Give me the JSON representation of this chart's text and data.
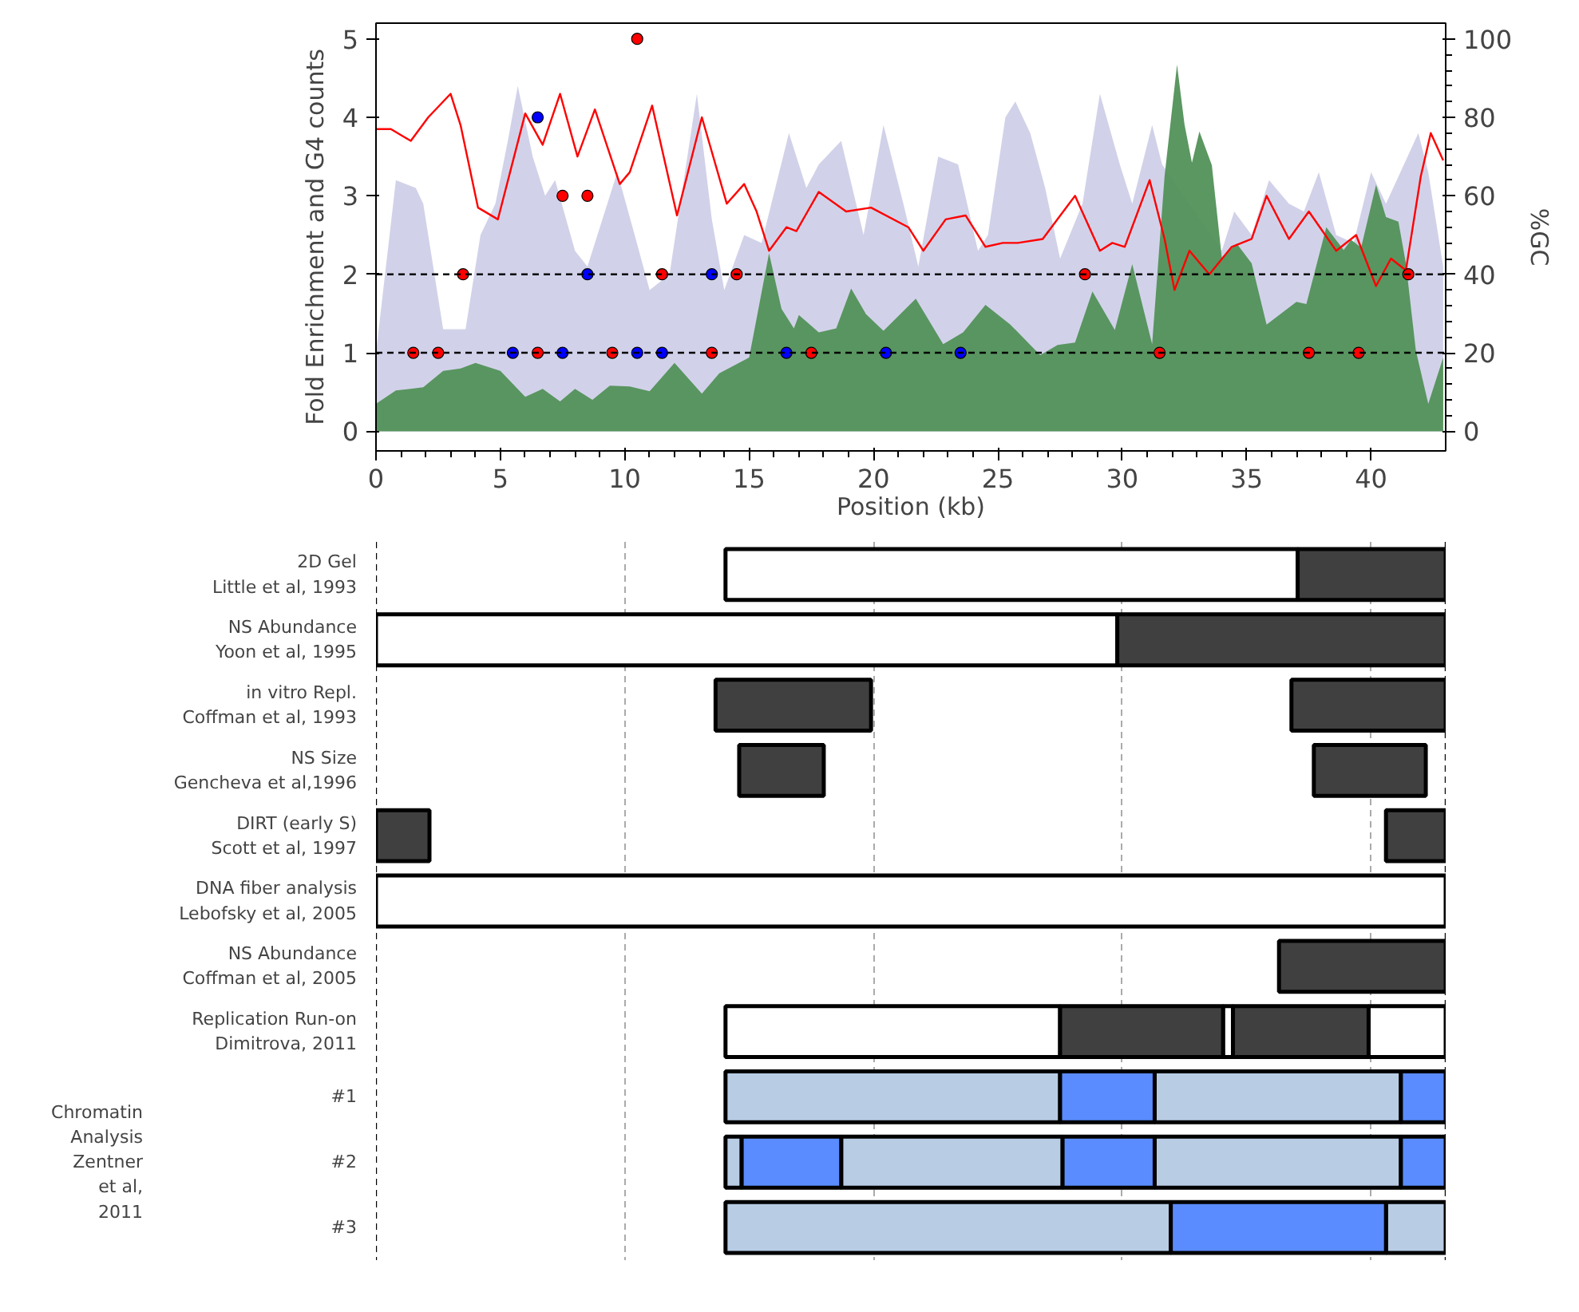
{
  "chart_data": [
    {
      "type": "area",
      "xlabel": "Position (kb)",
      "ylabel": "Fold Enrichment and G4 counts",
      "y2label": "%GC",
      "xlim": [
        0,
        43
      ],
      "xticks": [
        0,
        5,
        10,
        15,
        20,
        25,
        30,
        35,
        40
      ],
      "ylim": [
        -0.25,
        5.2
      ],
      "yticks": [
        0,
        1,
        2,
        3,
        4,
        5
      ],
      "y2lim": [
        -5,
        104
      ],
      "y2ticks": [
        0,
        20,
        40,
        60,
        80,
        100
      ],
      "grid": false,
      "ref_lines": [
        {
          "axis": "y",
          "value": 1,
          "line_style": "dashed",
          "color": "#000000"
        },
        {
          "axis": "y",
          "value": 2,
          "line_style": "dashed",
          "color": "#000000"
        }
      ],
      "series": [
        {
          "type": "area",
          "color": "#cfd0e8",
          "x": [
            0,
            0.8,
            1.6,
            1.9,
            2.7,
            3.6,
            4.2,
            4.8,
            5.3,
            5.7,
            6.3,
            6.8,
            7.2,
            8.0,
            8.5,
            9.7,
            10.4,
            11.0,
            11.8,
            12.9,
            13.5,
            14.0,
            14.8,
            15.5,
            16.6,
            17.3,
            17.8,
            18.7,
            19.6,
            20.4,
            21.2,
            21.8,
            22.6,
            23.4,
            24.2,
            24.6,
            25.3,
            25.7,
            26.3,
            26.9,
            27.5,
            28.4,
            29.1,
            29.9,
            30.4,
            31.2,
            31.6,
            34.0,
            34.5,
            35.2,
            35.9,
            36.7,
            37.3,
            37.9,
            38.6,
            39.3,
            40.0,
            40.6,
            41.9,
            42.3,
            42.9
          ],
          "values": [
            1.0,
            3.2,
            3.1,
            2.9,
            1.3,
            1.3,
            2.5,
            2.9,
            3.7,
            4.4,
            3.5,
            3.0,
            3.2,
            2.3,
            2.1,
            3.3,
            2.5,
            1.8,
            2.0,
            4.3,
            2.7,
            1.8,
            2.5,
            2.4,
            3.8,
            3.1,
            3.4,
            3.7,
            2.5,
            3.9,
            2.9,
            2.1,
            3.5,
            3.4,
            2.3,
            2.5,
            4.0,
            4.2,
            3.8,
            3.1,
            2.2,
            2.9,
            4.3,
            3.4,
            2.9,
            3.9,
            3.4,
            2.3,
            2.8,
            2.5,
            3.2,
            2.9,
            2.8,
            3.3,
            2.5,
            2.4,
            3.3,
            2.9,
            3.8,
            3.3,
            2.1
          ]
        },
        {
          "type": "area",
          "color": "#529159",
          "x": [
            0,
            0.8,
            1.9,
            2.7,
            3.4,
            4.0,
            5.0,
            6.0,
            6.7,
            7.4,
            8.0,
            8.7,
            9.4,
            10.2,
            11.0,
            12.0,
            13.1,
            13.8,
            15.0,
            15.8,
            16.3,
            16.8,
            17.0,
            17.8,
            18.5,
            19.1,
            19.7,
            20.4,
            21.7,
            22.8,
            23.6,
            24.5,
            25.5,
            26.7,
            27.4,
            28.1,
            28.8,
            29.7,
            30.4,
            31.2,
            31.7,
            32.2,
            32.5,
            32.8,
            33.1,
            33.6,
            34.0,
            34.6,
            35.2,
            35.8,
            37.0,
            37.4,
            38.2,
            38.9,
            39.2,
            39.6,
            40.2,
            40.6,
            41.1,
            41.4,
            41.8,
            42.3,
            42.9
          ],
          "values": [
            0.35,
            0.52,
            0.56,
            0.77,
            0.8,
            0.87,
            0.77,
            0.44,
            0.54,
            0.38,
            0.54,
            0.4,
            0.58,
            0.57,
            0.51,
            0.87,
            0.48,
            0.74,
            0.94,
            2.27,
            1.56,
            1.31,
            1.48,
            1.26,
            1.31,
            1.82,
            1.49,
            1.28,
            1.69,
            1.11,
            1.26,
            1.61,
            1.36,
            0.97,
            1.1,
            1.13,
            1.78,
            1.29,
            2.13,
            1.11,
            3.25,
            4.67,
            3.91,
            3.42,
            3.82,
            3.39,
            2.21,
            2.39,
            2.14,
            1.36,
            1.65,
            1.62,
            2.6,
            2.31,
            2.44,
            2.34,
            3.14,
            2.73,
            2.67,
            2.14,
            1.03,
            0.35,
            0.94
          ]
        },
        {
          "type": "line",
          "axis": "y2",
          "color": "#ff0000",
          "x": [
            0,
            0.6,
            1.4,
            2.1,
            3.0,
            3.4,
            4.1,
            4.9,
            6.0,
            6.7,
            7.4,
            8.1,
            8.8,
            9.8,
            10.2,
            11.1,
            12.1,
            13.1,
            14.1,
            14.8,
            15.3,
            15.8,
            16.5,
            16.9,
            17.8,
            18.9,
            19.9,
            21.4,
            22.0,
            22.9,
            23.7,
            24.5,
            25.2,
            25.8,
            26.8,
            28.1,
            29.1,
            29.6,
            30.1,
            31.1,
            31.7,
            32.1,
            32.7,
            33.5,
            34.4,
            35.2,
            35.8,
            36.7,
            37.5,
            38.6,
            39.4,
            40.2,
            40.8,
            41.4,
            42.0,
            42.4,
            42.9
          ],
          "values": [
            77,
            77,
            74,
            80,
            86,
            78,
            57,
            54,
            81,
            73,
            86,
            70,
            82,
            63,
            66,
            83,
            55,
            80,
            58,
            63,
            56,
            46,
            52,
            51,
            61,
            56,
            57,
            52,
            46,
            54,
            55,
            47,
            48,
            48,
            49,
            60,
            46,
            48,
            47,
            64,
            49,
            36,
            46,
            40,
            47,
            49,
            60,
            49,
            56,
            46,
            50,
            37,
            44,
            41,
            65,
            76,
            69
          ]
        },
        {
          "type": "scatter",
          "marker": "circle",
          "color": "#ff0000",
          "x": [
            1.5,
            2.5,
            3.5,
            6.5,
            7.5,
            8.5,
            9.5,
            10.5,
            11.5,
            13.5,
            14.5,
            17.5,
            28.5,
            31.5,
            37.5,
            39.5,
            41.5
          ],
          "values": [
            1,
            1,
            2,
            1,
            3,
            3,
            1,
            5,
            2,
            1,
            2,
            1,
            2,
            1,
            1,
            1,
            2
          ]
        },
        {
          "type": "scatter",
          "marker": "circle",
          "color": "#0000ff",
          "x": [
            5.5,
            6.5,
            7.5,
            8.5,
            10.5,
            11.5,
            13.5,
            16.5,
            20.5,
            23.5
          ],
          "values": [
            1,
            4,
            1,
            2,
            1,
            1,
            2,
            1,
            1,
            1
          ]
        }
      ]
    },
    {
      "type": "bar",
      "orientation": "horizontal",
      "xlim": [
        0,
        43
      ],
      "xticks": [
        10,
        20,
        30,
        40
      ],
      "grid": "x",
      "tick_labels": "y",
      "categories": [
        "2D Gel\nLittle et al, 1993",
        "NS Abundance\nYoon et al, 1995",
        "in vitro Repl.\nCoffman et al, 1993",
        "NS Size\nGencheva et al,1996",
        "DIRT (early S)\nScott et al, 1997",
        "DNA fiber analysis\nLebofsky et al, 2005",
        "NS Abundance\nCoffman et al, 2005",
        "Replication Run-on\nDimitrova, 2011",
        "#1",
        "#2",
        "#3"
      ],
      "annotations": [
        "Chromatin Analysis Zentner et al, 2011"
      ],
      "ref_lines": [
        {
          "axis": "x",
          "value": 0,
          "line_style": "dashed",
          "color": "#000000"
        },
        {
          "axis": "x",
          "value": 43,
          "line_style": "dashed",
          "color": "#000000"
        }
      ],
      "series": [
        {
          "color": "#ffffff",
          "base": [
            14.05,
            0,
            null,
            null,
            null,
            0,
            null,
            14.05,
            null,
            null,
            null
          ],
          "values": [
            23.0,
            29.8,
            null,
            null,
            null,
            43,
            null,
            13.45,
            null,
            null,
            null
          ]
        },
        {
          "color": "#ffffff",
          "base": [
            null,
            null,
            null,
            null,
            null,
            null,
            null,
            34.05,
            null,
            null,
            null
          ],
          "values": [
            null,
            null,
            null,
            null,
            null,
            null,
            null,
            0.4,
            null,
            null,
            null
          ]
        },
        {
          "color": "#ffffff",
          "base": [
            null,
            null,
            null,
            null,
            null,
            null,
            null,
            39.9,
            null,
            null,
            null
          ],
          "values": [
            null,
            null,
            null,
            null,
            null,
            null,
            null,
            3.1,
            null,
            null,
            null
          ]
        },
        {
          "color": "#404040",
          "base": [
            37.05,
            29.8,
            13.65,
            14.6,
            0,
            null,
            36.3,
            27.5,
            null,
            null,
            null
          ],
          "values": [
            5.95,
            13.2,
            6.25,
            3.4,
            2.15,
            null,
            6.7,
            6.55,
            null,
            null,
            null
          ]
        },
        {
          "color": "#404040",
          "base": [
            null,
            null,
            36.8,
            37.7,
            40.6,
            null,
            null,
            34.45,
            null,
            null,
            null
          ],
          "values": [
            null,
            null,
            6.2,
            4.5,
            2.4,
            null,
            null,
            5.45,
            null,
            null,
            null
          ]
        },
        {
          "color": "#b8cce4",
          "base": [
            null,
            null,
            null,
            null,
            null,
            null,
            null,
            null,
            14.05,
            14.05,
            14.05
          ],
          "values": [
            null,
            null,
            null,
            null,
            null,
            null,
            null,
            null,
            13.45,
            0.65,
            17.9
          ]
        },
        {
          "color": "#b8cce4",
          "base": [
            null,
            null,
            null,
            null,
            null,
            null,
            null,
            null,
            31.3,
            18.7,
            40.6
          ],
          "values": [
            null,
            null,
            null,
            null,
            null,
            null,
            null,
            null,
            9.9,
            8.9,
            2.4
          ]
        },
        {
          "color": "#b8cce4",
          "base": [
            null,
            null,
            null,
            null,
            null,
            null,
            null,
            null,
            null,
            31.3,
            null
          ],
          "values": [
            null,
            null,
            null,
            null,
            null,
            null,
            null,
            null,
            null,
            9.9,
            null
          ]
        },
        {
          "color": "#5a8cff",
          "base": [
            null,
            null,
            null,
            null,
            null,
            null,
            null,
            null,
            27.5,
            14.7,
            31.95
          ],
          "values": [
            null,
            null,
            null,
            null,
            null,
            null,
            null,
            null,
            3.8,
            4.0,
            8.65
          ]
        },
        {
          "color": "#5a8cff",
          "base": [
            null,
            null,
            null,
            null,
            null,
            null,
            null,
            null,
            41.2,
            27.6,
            null
          ],
          "values": [
            null,
            null,
            null,
            null,
            null,
            null,
            null,
            null,
            1.8,
            3.7,
            null
          ]
        },
        {
          "color": "#5a8cff",
          "base": [
            null,
            null,
            null,
            null,
            null,
            null,
            null,
            null,
            null,
            41.2,
            null
          ],
          "values": [
            null,
            null,
            null,
            null,
            null,
            null,
            null,
            null,
            null,
            1.8,
            null
          ]
        }
      ]
    }
  ]
}
